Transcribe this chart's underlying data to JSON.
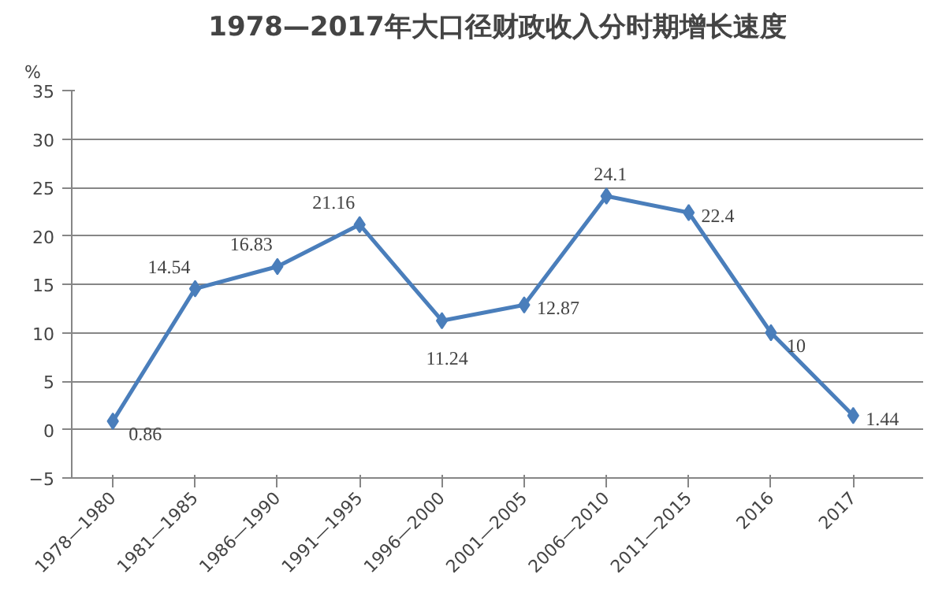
{
  "chart_data": {
    "type": "line",
    "title": "1978—2017年大口径财政收入分时期增长速度",
    "ylabel": "%",
    "categories": [
      "1978—1980",
      "1981—1985",
      "1986—1990",
      "1991—1995",
      "1996—2000",
      "2001—2005",
      "2006—2010",
      "2011—2015",
      "2016",
      "2017"
    ],
    "series": [
      {
        "color": "#4a7ebb",
        "values": [
          0.86,
          14.54,
          16.83,
          21.16,
          11.24,
          12.87,
          24.1,
          22.4,
          10,
          1.44
        ]
      }
    ],
    "ylim": [
      -5,
      35
    ],
    "yticks": [
      -5,
      0,
      5,
      10,
      15,
      20,
      25,
      30,
      35
    ],
    "grid": "y",
    "marker": "diamond",
    "line_style": "solid",
    "data_labels": true
  }
}
